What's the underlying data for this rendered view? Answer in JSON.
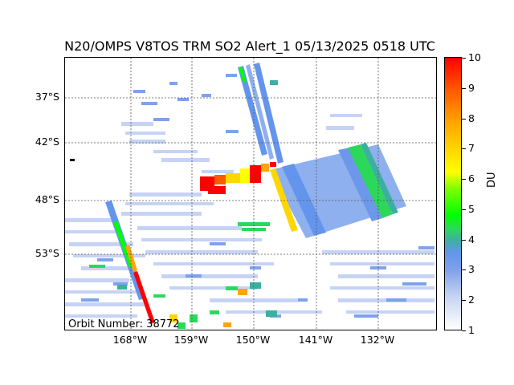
{
  "title": "N20/OMPS V8TOS TRM SO2 Alert_1 05/13/2025 0518 UTC",
  "orbit_label": "Orbit Number: 38772",
  "lat_labels": [
    "37°S",
    "42°S",
    "48°S",
    "53°S"
  ],
  "lon_labels": [
    "168°W",
    "159°W",
    "150°W",
    "141°W",
    "132°W"
  ],
  "colorbar": {
    "title": "DU",
    "ticks": [
      "1",
      "2",
      "3",
      "4",
      "5",
      "6",
      "7",
      "8",
      "9",
      "10"
    ],
    "colors": [
      "#ffffff",
      "#6495ed",
      "#00ff00",
      "#ffff00",
      "#ff0000"
    ]
  }
}
